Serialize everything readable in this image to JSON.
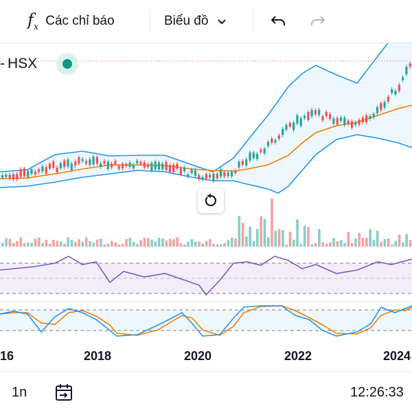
{
  "toolbar": {
    "indicators_label": "Các chỉ báo",
    "chart_type_label": "Biểu đồ"
  },
  "symbol": {
    "exchange": "HSX",
    "separator": "-"
  },
  "x_axis": {
    "labels": [
      "16",
      "2018",
      "2020",
      "2022",
      "2024"
    ]
  },
  "bottom_bar": {
    "interval": "1n",
    "time": "12:26:33"
  },
  "colors": {
    "up": "#26a69a",
    "down": "#ef5350",
    "bollinger": "#2196f3",
    "ma": "#f57c00",
    "rsi": "#7e57c2",
    "stoch_k": "#2196f3",
    "stoch_d": "#f57c00"
  },
  "chart_data": {
    "type": "candlestick",
    "x_range": [
      "2016",
      "2024"
    ],
    "panes": [
      "price",
      "volume",
      "rsi",
      "stochastic"
    ],
    "legend_visible": false
  }
}
